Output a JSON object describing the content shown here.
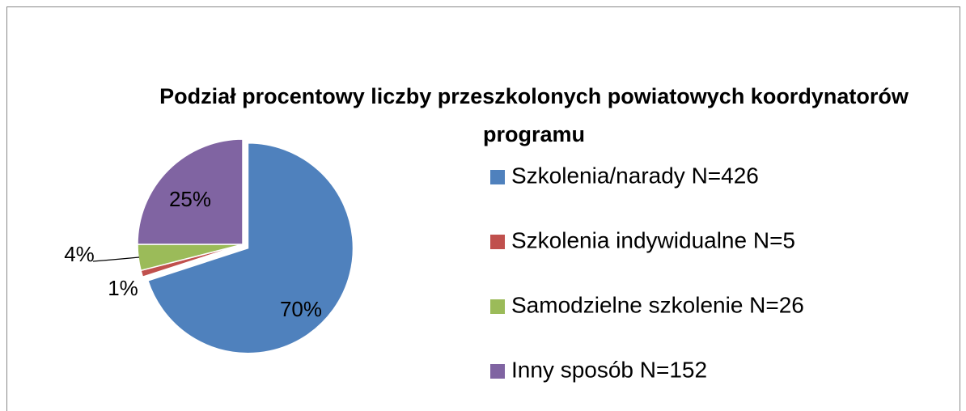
{
  "chart_data": {
    "type": "pie",
    "title": "Podział procentowy liczby przeszkolonych powiatowych koordynatorów programu",
    "categories": [
      "Szkolenia/narady N=426",
      "Szkolenia indywidualne N=5",
      "Samodzielne szkolenie N=26",
      "Inny sposób N=152"
    ],
    "values": [
      70,
      1,
      4,
      25
    ],
    "value_labels": [
      "70%",
      "1%",
      "4%",
      "25%"
    ],
    "colors": [
      "#4f81bd",
      "#c0504d",
      "#9bbb59",
      "#8064a2"
    ],
    "legend": "right"
  }
}
